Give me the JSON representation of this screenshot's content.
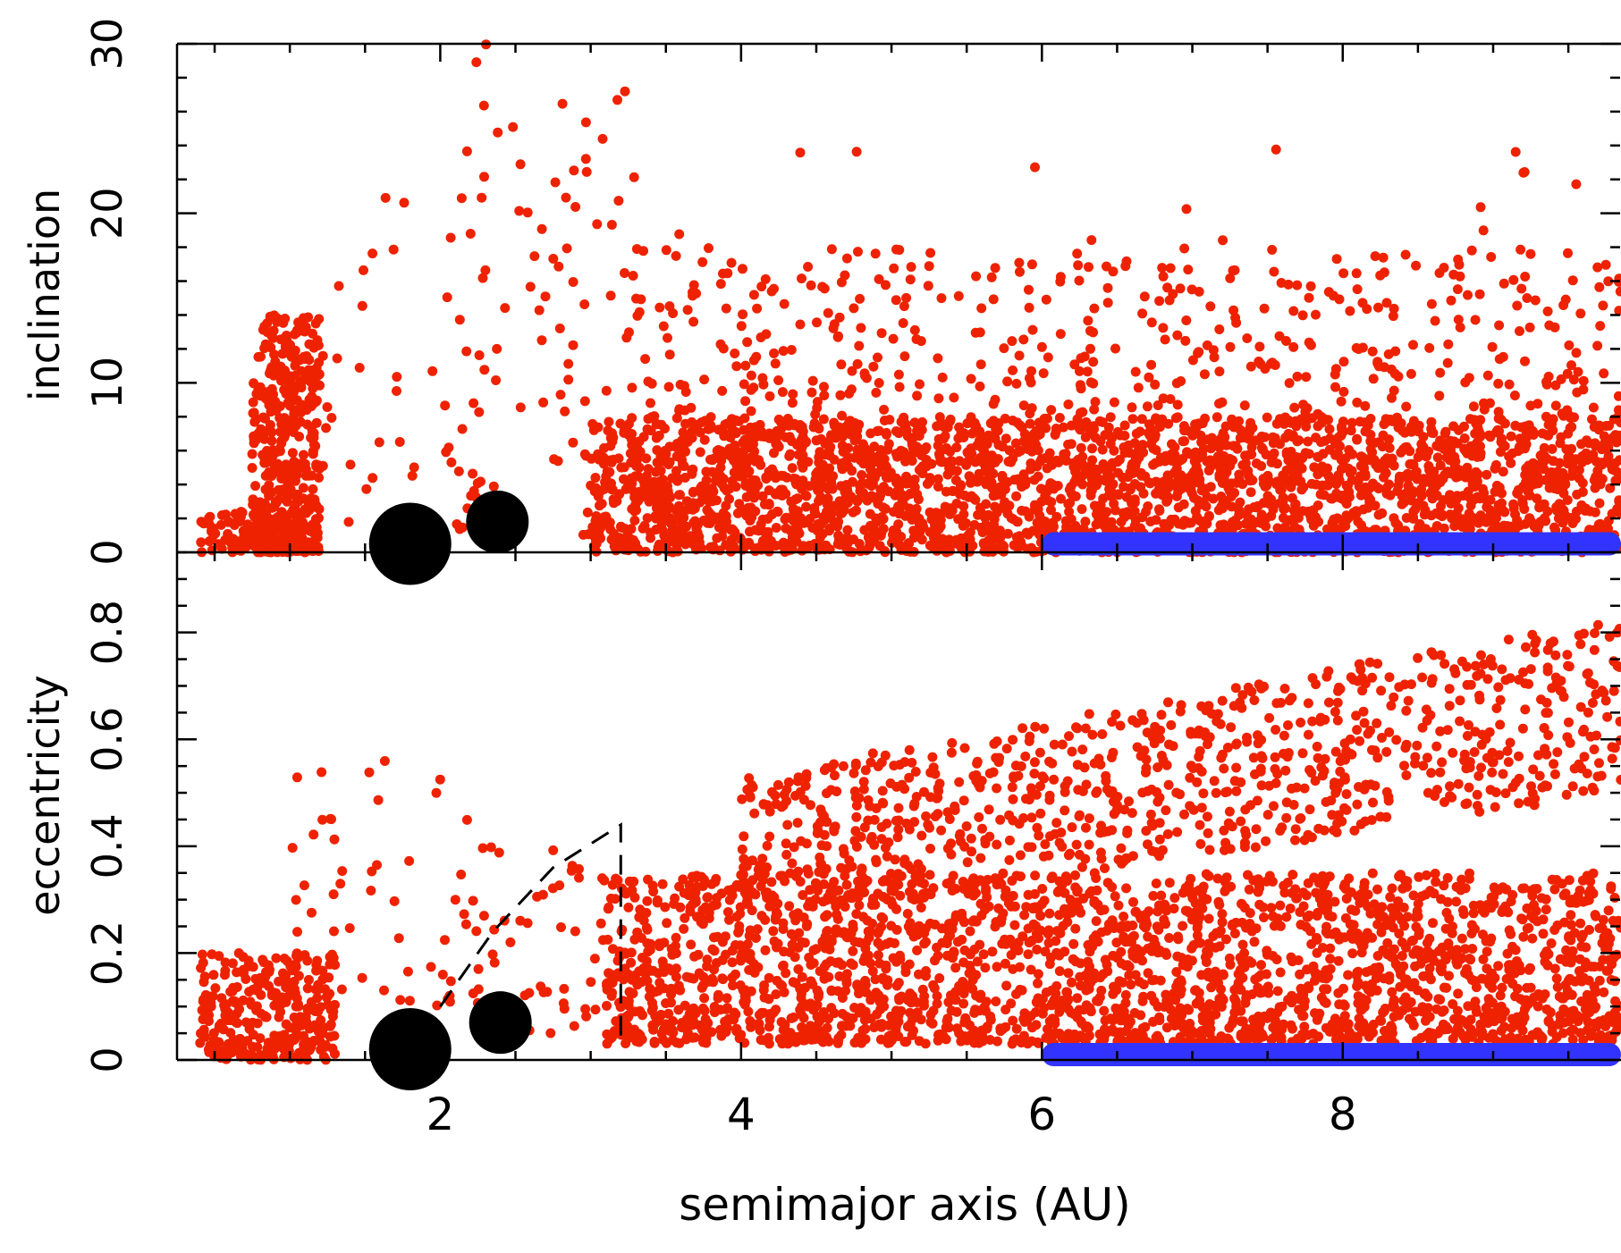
{
  "figure": {
    "xlabel": "semimajor axis (AU)"
  },
  "chart_data": [
    {
      "type": "scatter",
      "panel": "top",
      "xlabel": "",
      "ylabel": "inclination",
      "xlim": [
        0.25,
        9.85
      ],
      "ylim": [
        0,
        30
      ],
      "xticks": [
        2,
        4,
        6,
        8
      ],
      "yticks": [
        "0",
        "10",
        "20",
        "30"
      ],
      "ytick_values": [
        0,
        10,
        20,
        30
      ],
      "grid": false,
      "colors": {
        "scatter": "#ee2200",
        "planetesimals": "#3333ff",
        "planets": "#000000"
      },
      "planets": [
        {
          "x": 1.8,
          "y": 0.5,
          "size": "large"
        },
        {
          "x": 2.38,
          "y": 1.8,
          "size": "medium"
        }
      ],
      "planetesimal_band": {
        "x_from": 6.0,
        "x_to": 9.85,
        "y": 0.5
      },
      "scatter_clusters": [
        {
          "x": [
            0.4,
            1.1
          ],
          "y": [
            0,
            2.5
          ],
          "n": 120
        },
        {
          "x": [
            0.75,
            1.2
          ],
          "y": [
            0,
            14
          ],
          "n": 420
        },
        {
          "x": [
            1.15,
            2.3
          ],
          "y": [
            1,
            23
          ],
          "n": 40
        },
        {
          "x": [
            2.0,
            3.3
          ],
          "y": [
            1,
            30
          ],
          "n": 90
        },
        {
          "x": [
            3.0,
            9.85
          ],
          "y": [
            0,
            8
          ],
          "n": 2600
        },
        {
          "x": [
            3.2,
            9.85
          ],
          "y": [
            4,
            18
          ],
          "n": 700
        },
        {
          "x": [
            3.5,
            9.6
          ],
          "y": [
            10,
            24
          ],
          "n": 40
        }
      ]
    },
    {
      "type": "scatter",
      "panel": "bottom",
      "xlabel": "semimajor axis (AU)",
      "ylabel": "eccentricity",
      "xlim": [
        0.25,
        9.85
      ],
      "ylim": [
        0,
        0.95
      ],
      "xticks": [
        2,
        4,
        6,
        8
      ],
      "xtick_labels": [
        "2",
        "4",
        "6",
        "8"
      ],
      "yticks": [
        "0",
        "0.2",
        "0.4",
        "0.6",
        "0.8"
      ],
      "ytick_values": [
        0,
        0.2,
        0.4,
        0.6,
        0.8
      ],
      "grid": false,
      "colors": {
        "scatter": "#ee2200",
        "planetesimals": "#3333ff",
        "planets": "#000000"
      },
      "planets": [
        {
          "x": 1.8,
          "y": 0.02,
          "size": "large"
        },
        {
          "x": 2.4,
          "y": 0.07,
          "size": "medium"
        }
      ],
      "planetesimal_band": {
        "x_from": 6.0,
        "x_to": 9.85,
        "y": 0.01
      },
      "dashed_boundary": [
        {
          "x": 2.0,
          "y": 0.1
        },
        {
          "x": 2.35,
          "y": 0.24
        },
        {
          "x": 2.75,
          "y": 0.36
        },
        {
          "x": 3.2,
          "y": 0.44
        },
        {
          "x": 3.2,
          "y": 0.03
        }
      ],
      "scatter_clusters": [
        {
          "x": [
            0.4,
            1.3
          ],
          "y": [
            0,
            0.2
          ],
          "n": 300
        },
        {
          "x": [
            1.0,
            2.2
          ],
          "y": [
            0.1,
            0.6
          ],
          "n": 40
        },
        {
          "x": [
            2.0,
            3.2
          ],
          "y": [
            0.05,
            0.4
          ],
          "n": 60
        },
        {
          "x": [
            3.1,
            9.85
          ],
          "y": [
            0.03,
            0.35
          ],
          "n": 2400
        },
        {
          "x": [
            4.0,
            9.85
          ],
          "y": [
            0.3,
            0.75
          ],
          "n": 900
        }
      ]
    }
  ]
}
